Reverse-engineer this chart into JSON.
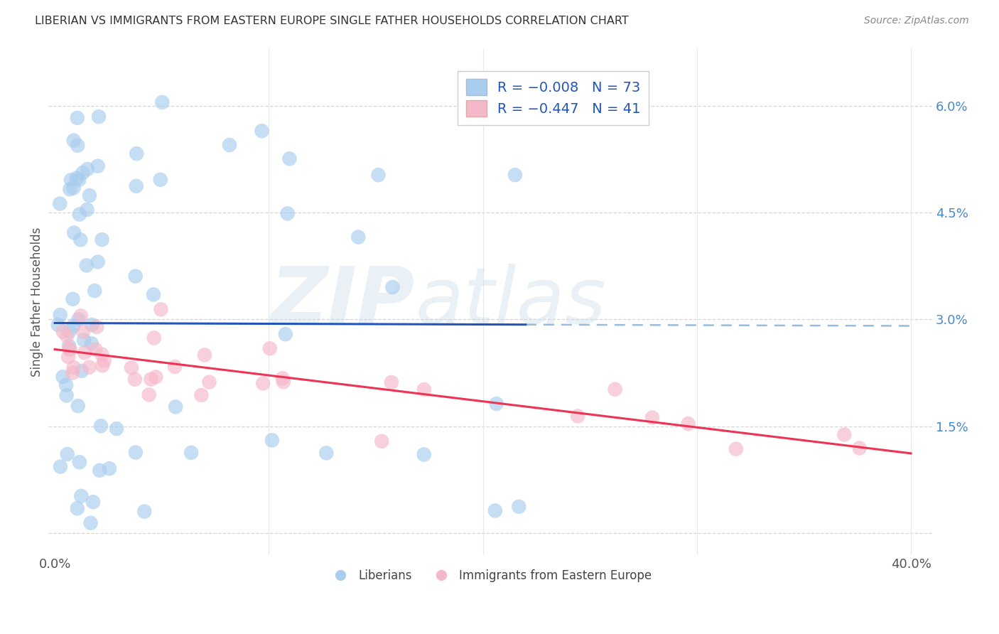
{
  "title": "LIBERIAN VS IMMIGRANTS FROM EASTERN EUROPE SINGLE FATHER HOUSEHOLDS CORRELATION CHART",
  "source": "Source: ZipAtlas.com",
  "ylabel": "Single Father Households",
  "xlim": [
    -0.003,
    0.41
  ],
  "ylim": [
    -0.003,
    0.068
  ],
  "blue_R": -0.008,
  "blue_N": 73,
  "pink_R": -0.447,
  "pink_N": 41,
  "blue_color": "#A8CDEF",
  "pink_color": "#F5B8C8",
  "blue_line_color": "#2255BB",
  "pink_line_color": "#EE3355",
  "blue_dash_color": "#99BBDD",
  "legend_label_blue": "Liberians",
  "legend_label_pink": "Immigrants from Eastern Europe",
  "background_color": "#FFFFFF",
  "grid_color": "#CCCCCC",
  "title_color": "#333333",
  "source_color": "#888888",
  "axis_label_color": "#4488CC",
  "legend_R_color": "#000000",
  "legend_N_color": "#2255BB",
  "watermark_color": "#C5D8E8",
  "blue_x": [
    0.002,
    0.004,
    0.005,
    0.006,
    0.006,
    0.007,
    0.007,
    0.008,
    0.009,
    0.009,
    0.01,
    0.01,
    0.011,
    0.011,
    0.011,
    0.012,
    0.012,
    0.012,
    0.013,
    0.013,
    0.014,
    0.014,
    0.015,
    0.015,
    0.016,
    0.016,
    0.017,
    0.018,
    0.018,
    0.019,
    0.019,
    0.019,
    0.02,
    0.02,
    0.02,
    0.021,
    0.021,
    0.022,
    0.022,
    0.023,
    0.024,
    0.025,
    0.026,
    0.027,
    0.028,
    0.03,
    0.031,
    0.033,
    0.035,
    0.038,
    0.04,
    0.043,
    0.047,
    0.05,
    0.055,
    0.06,
    0.065,
    0.07,
    0.08,
    0.095,
    0.105,
    0.115,
    0.125,
    0.14,
    0.155,
    0.17,
    0.185,
    0.195,
    0.205,
    0.215,
    0.218,
    0.22,
    0.221
  ],
  "blue_y": [
    0.059,
    0.059,
    0.058,
    0.057,
    0.053,
    0.05,
    0.047,
    0.046,
    0.045,
    0.042,
    0.042,
    0.04,
    0.04,
    0.038,
    0.037,
    0.037,
    0.036,
    0.035,
    0.034,
    0.033,
    0.033,
    0.032,
    0.032,
    0.031,
    0.031,
    0.031,
    0.03,
    0.03,
    0.03,
    0.029,
    0.029,
    0.028,
    0.028,
    0.027,
    0.026,
    0.026,
    0.025,
    0.025,
    0.024,
    0.024,
    0.023,
    0.023,
    0.022,
    0.022,
    0.021,
    0.021,
    0.02,
    0.019,
    0.018,
    0.018,
    0.017,
    0.017,
    0.016,
    0.016,
    0.015,
    0.014,
    0.013,
    0.012,
    0.01,
    0.009,
    0.008,
    0.008,
    0.007,
    0.007,
    0.006,
    0.006,
    0.005,
    0.005,
    0.005,
    0.004,
    0.004,
    0.004,
    0.003
  ],
  "pink_x": [
    0.003,
    0.005,
    0.006,
    0.007,
    0.008,
    0.009,
    0.01,
    0.011,
    0.012,
    0.013,
    0.014,
    0.015,
    0.016,
    0.017,
    0.018,
    0.02,
    0.022,
    0.025,
    0.028,
    0.032,
    0.036,
    0.04,
    0.045,
    0.055,
    0.065,
    0.08,
    0.1,
    0.12,
    0.145,
    0.17,
    0.2,
    0.23,
    0.255,
    0.28,
    0.305,
    0.325,
    0.345,
    0.355,
    0.36,
    0.37,
    0.38
  ],
  "pink_y": [
    0.025,
    0.024,
    0.024,
    0.023,
    0.023,
    0.022,
    0.022,
    0.021,
    0.021,
    0.021,
    0.02,
    0.02,
    0.02,
    0.02,
    0.019,
    0.019,
    0.019,
    0.018,
    0.018,
    0.017,
    0.017,
    0.016,
    0.016,
    0.015,
    0.015,
    0.014,
    0.014,
    0.013,
    0.013,
    0.012,
    0.012,
    0.012,
    0.011,
    0.011,
    0.011,
    0.01,
    0.01,
    0.01,
    0.009,
    0.009,
    0.014
  ]
}
